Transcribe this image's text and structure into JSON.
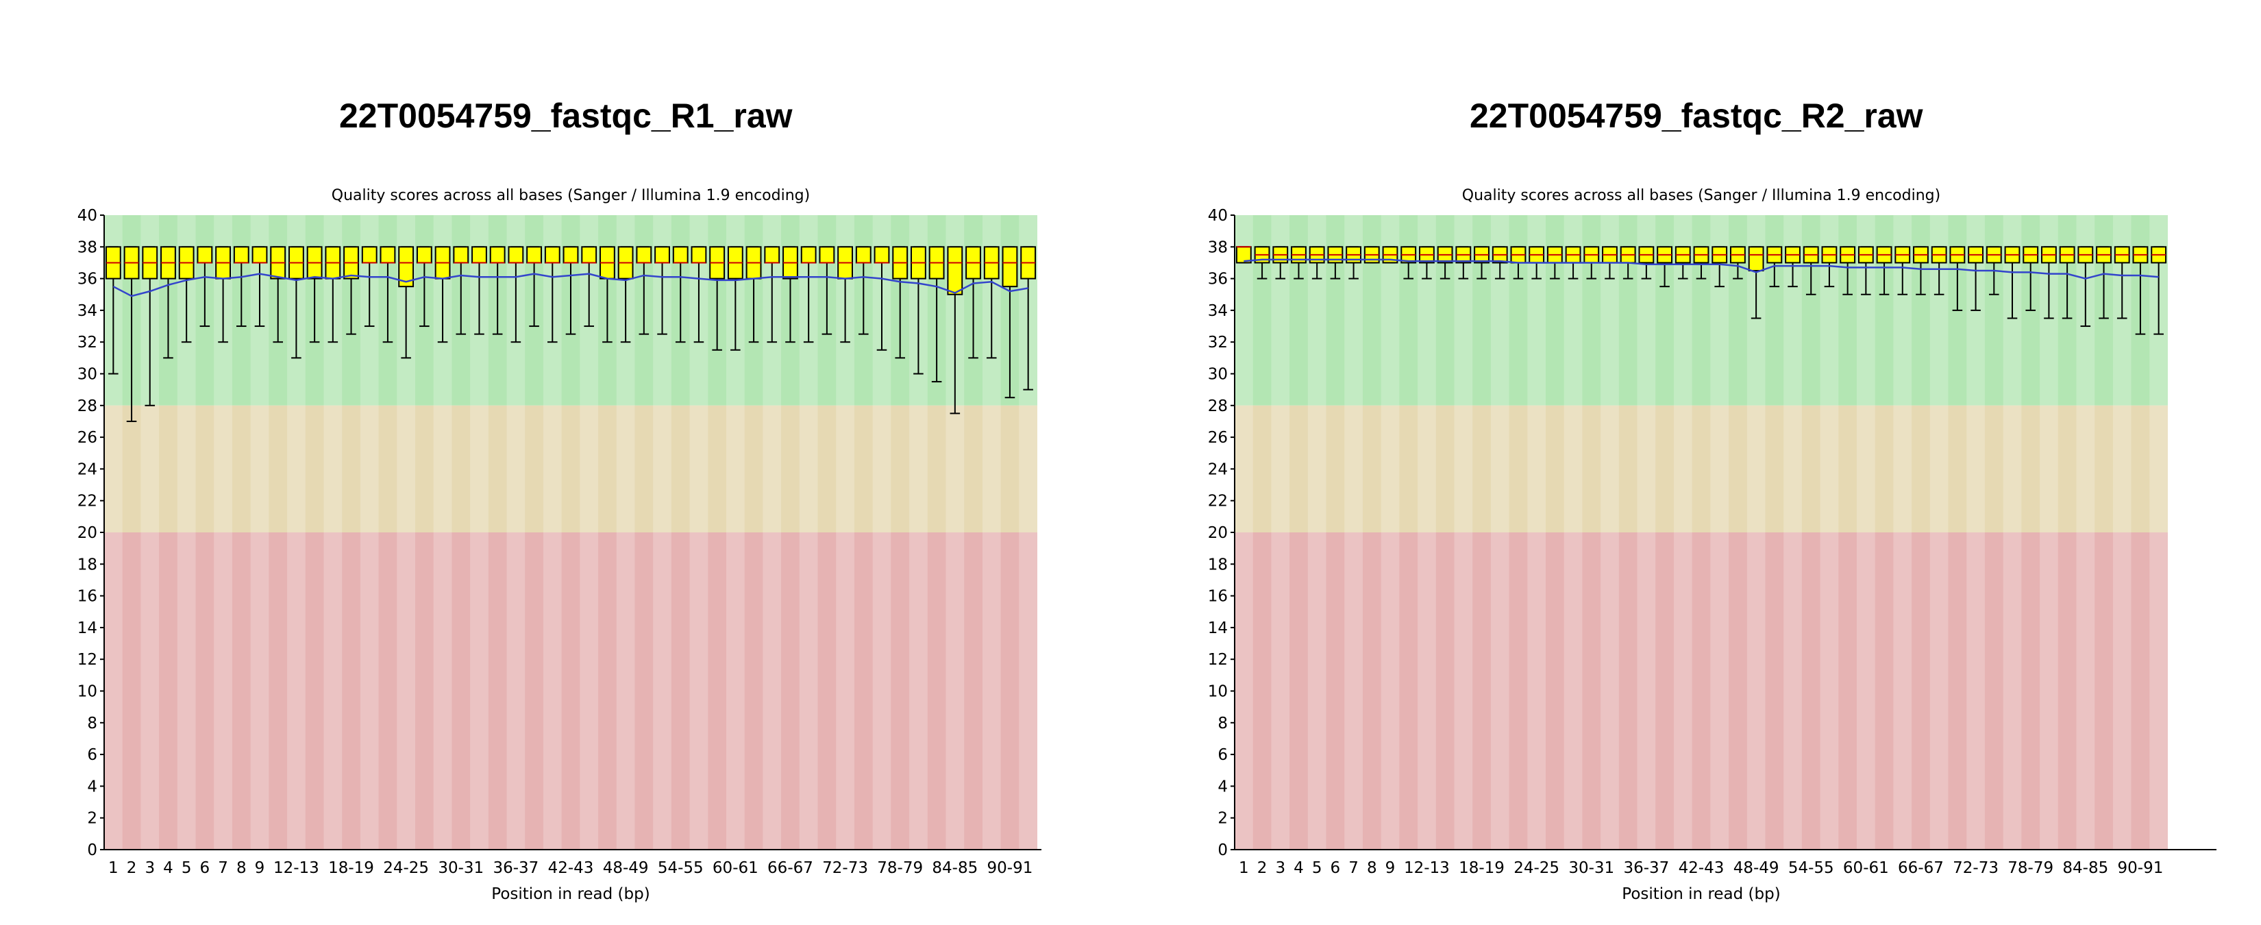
{
  "chart_data": [
    {
      "type": "box",
      "title": "22T0054759_fastqc_R1_raw",
      "subtitle": "Quality scores across all bases (Sanger / Illumina 1.9 encoding)",
      "xlabel": "Position in read (bp)",
      "ylabel": "",
      "ylim": [
        0,
        40
      ],
      "y_ticks": [
        0,
        2,
        4,
        6,
        8,
        10,
        12,
        14,
        16,
        18,
        20,
        22,
        24,
        26,
        28,
        30,
        32,
        34,
        36,
        38,
        40
      ],
      "zones": [
        {
          "from": 28,
          "to": 40,
          "color": "#b3e6b3"
        },
        {
          "from": 20,
          "to": 28,
          "color": "#e6d9b3"
        },
        {
          "from": 0,
          "to": 20,
          "color": "#e6b3b3"
        }
      ],
      "colors": {
        "box": "#ffff00",
        "mean_line": "#3344cc",
        "median": "#cc0000",
        "whisker": "#000000"
      },
      "categories": [
        "1",
        "2",
        "3",
        "4",
        "5",
        "6",
        "7",
        "8",
        "9",
        "10-11",
        "12-13",
        "14-15",
        "16-17",
        "18-19",
        "20-21",
        "22-23",
        "24-25",
        "26-27",
        "28-29",
        "30-31",
        "32-33",
        "34-35",
        "36-37",
        "38-39",
        "40-41",
        "42-43",
        "44-45",
        "46-47",
        "48-49",
        "50-51",
        "52-53",
        "54-55",
        "56-57",
        "58-59",
        "60-61",
        "62-63",
        "64-65",
        "66-67",
        "68-69",
        "70-71",
        "72-73",
        "74-75",
        "76-77",
        "78-79",
        "80-81",
        "82-83",
        "84-85",
        "86-87",
        "88-89",
        "90-91",
        "92-93"
      ],
      "x_tick_labels": [
        "1",
        "2",
        "3",
        "4",
        "5",
        "6",
        "7",
        "8",
        "9",
        "12-13",
        "18-19",
        "24-25",
        "30-31",
        "36-37",
        "42-43",
        "48-49",
        "54-55",
        "60-61",
        "66-67",
        "72-73",
        "78-79",
        "84-85",
        "90-91"
      ],
      "whisker_low": [
        30,
        27,
        28,
        31,
        32,
        33,
        32,
        33,
        33,
        32,
        31,
        32,
        32,
        32.5,
        33,
        32,
        31,
        33,
        32,
        32.5,
        32.5,
        32.5,
        32,
        33,
        32,
        32.5,
        33,
        32,
        32,
        32.5,
        32.5,
        32,
        32,
        31.5,
        31.5,
        32,
        32,
        32,
        32,
        32.5,
        32,
        32.5,
        31.5,
        31,
        30,
        29.5,
        27.5,
        31,
        31,
        28.5,
        29
      ],
      "q1": [
        36,
        36,
        36,
        36,
        36,
        37,
        36,
        37,
        37,
        36,
        36,
        36,
        36,
        36,
        37,
        37,
        35.5,
        37,
        36,
        37,
        37,
        37,
        37,
        37,
        37,
        37,
        37,
        36,
        36,
        37,
        37,
        37,
        37,
        36,
        36,
        36,
        37,
        36,
        37,
        37,
        36,
        37,
        37,
        36,
        36,
        36,
        35,
        36,
        36,
        35.5,
        36
      ],
      "median": [
        37,
        37,
        37,
        37,
        37,
        37,
        37,
        37,
        37,
        37,
        37,
        37,
        37,
        37,
        37,
        37,
        37,
        37,
        37,
        37,
        37,
        37,
        37,
        37,
        37,
        37,
        37,
        37,
        37,
        37,
        37,
        37,
        37,
        37,
        37,
        37,
        37,
        37,
        37,
        37,
        37,
        37,
        37,
        37,
        37,
        37,
        37,
        37,
        37,
        37,
        37
      ],
      "q3": [
        38,
        38,
        38,
        38,
        38,
        38,
        38,
        38,
        38,
        38,
        38,
        38,
        38,
        38,
        38,
        38,
        38,
        38,
        38,
        38,
        38,
        38,
        38,
        38,
        38,
        38,
        38,
        38,
        38,
        38,
        38,
        38,
        38,
        38,
        38,
        38,
        38,
        38,
        38,
        38,
        38,
        38,
        38,
        38,
        38,
        38,
        38,
        38,
        38,
        38,
        38
      ],
      "whisker_high": [
        38,
        38,
        38,
        38,
        38,
        38,
        38,
        38,
        38,
        38,
        38,
        38,
        38,
        38,
        38,
        38,
        38,
        38,
        38,
        38,
        38,
        38,
        38,
        38,
        38,
        38,
        38,
        38,
        38,
        38,
        38,
        38,
        38,
        38,
        38,
        38,
        38,
        38,
        38,
        38,
        38,
        38,
        38,
        38,
        38,
        38,
        38,
        38,
        38,
        38,
        38
      ],
      "mean": [
        35.5,
        34.9,
        35.2,
        35.6,
        35.9,
        36.1,
        36.0,
        36.1,
        36.3,
        36.1,
        35.9,
        36.1,
        36.0,
        36.2,
        36.1,
        36.1,
        35.8,
        36.1,
        36.0,
        36.2,
        36.1,
        36.1,
        36.1,
        36.3,
        36.1,
        36.2,
        36.3,
        36.0,
        35.9,
        36.2,
        36.1,
        36.1,
        36.0,
        35.9,
        35.9,
        36.0,
        36.1,
        36.1,
        36.1,
        36.1,
        36.0,
        36.1,
        36.0,
        35.8,
        35.7,
        35.5,
        35.1,
        35.7,
        35.8,
        35.2,
        35.4
      ]
    },
    {
      "type": "box",
      "title": "22T0054759_fastqc_R2_raw",
      "subtitle": "Quality scores across all bases (Sanger / Illumina 1.9 encoding)",
      "xlabel": "Position in read (bp)",
      "ylabel": "",
      "ylim": [
        0,
        40
      ],
      "y_ticks": [
        0,
        2,
        4,
        6,
        8,
        10,
        12,
        14,
        16,
        18,
        20,
        22,
        24,
        26,
        28,
        30,
        32,
        34,
        36,
        38,
        40
      ],
      "zones": [
        {
          "from": 28,
          "to": 40,
          "color": "#b3e6b3"
        },
        {
          "from": 20,
          "to": 28,
          "color": "#e6d9b3"
        },
        {
          "from": 0,
          "to": 20,
          "color": "#e6b3b3"
        }
      ],
      "colors": {
        "box": "#ffff00",
        "mean_line": "#3344cc",
        "median": "#cc0000",
        "whisker": "#000000"
      },
      "categories": [
        "1",
        "2",
        "3",
        "4",
        "5",
        "6",
        "7",
        "8",
        "9",
        "10-11",
        "12-13",
        "14-15",
        "16-17",
        "18-19",
        "20-21",
        "22-23",
        "24-25",
        "26-27",
        "28-29",
        "30-31",
        "32-33",
        "34-35",
        "36-37",
        "38-39",
        "40-41",
        "42-43",
        "44-45",
        "46-47",
        "48-49",
        "50-51",
        "52-53",
        "54-55",
        "56-57",
        "58-59",
        "60-61",
        "62-63",
        "64-65",
        "66-67",
        "68-69",
        "70-71",
        "72-73",
        "74-75",
        "76-77",
        "78-79",
        "80-81",
        "82-83",
        "84-85",
        "86-87",
        "88-89",
        "90-91",
        "92-93"
      ],
      "x_tick_labels": [
        "1",
        "2",
        "3",
        "4",
        "5",
        "6",
        "7",
        "8",
        "9",
        "12-13",
        "18-19",
        "24-25",
        "30-31",
        "36-37",
        "42-43",
        "48-49",
        "54-55",
        "60-61",
        "66-67",
        "72-73",
        "78-79",
        "84-85",
        "90-91"
      ],
      "whisker_low": [
        37,
        36,
        36,
        36,
        36,
        36,
        36,
        37,
        37,
        36,
        36,
        36,
        36,
        36,
        36,
        36,
        36,
        36,
        36,
        36,
        36,
        36,
        36,
        35.5,
        36,
        36,
        35.5,
        36,
        33.5,
        35.5,
        35.5,
        35,
        35.5,
        35,
        35,
        35,
        35,
        35,
        35,
        34,
        34,
        35,
        33.5,
        34,
        33.5,
        33.5,
        33,
        33.5,
        33.5,
        32.5,
        32.5
      ],
      "q1": [
        37,
        37,
        37,
        37,
        37,
        37,
        37,
        37,
        37,
        37,
        37,
        37,
        37,
        37,
        37,
        37,
        37,
        37,
        37,
        37,
        37,
        37,
        37,
        37,
        37,
        37,
        37,
        37,
        36.5,
        37,
        37,
        37,
        37,
        37,
        37,
        37,
        37,
        37,
        37,
        37,
        37,
        37,
        37,
        37,
        37,
        37,
        37,
        37,
        37,
        37,
        37
      ],
      "median": [
        38,
        37.5,
        37.5,
        37.5,
        37.5,
        37.5,
        37.5,
        37.5,
        37.5,
        37.5,
        37.5,
        37.5,
        37.5,
        37.5,
        37.5,
        37.5,
        37.5,
        37.5,
        37.5,
        37.5,
        37.5,
        37.5,
        37.5,
        37.5,
        37.5,
        37.5,
        37.5,
        37.5,
        37.5,
        37.5,
        37.5,
        37.5,
        37.5,
        37.5,
        37.5,
        37.5,
        37.5,
        37.5,
        37.5,
        37.5,
        37.5,
        37.5,
        37.5,
        37.5,
        37.5,
        37.5,
        37.5,
        37.5,
        37.5,
        37.5,
        37.5
      ],
      "q3": [
        38,
        38,
        38,
        38,
        38,
        38,
        38,
        38,
        38,
        38,
        38,
        38,
        38,
        38,
        38,
        38,
        38,
        38,
        38,
        38,
        38,
        38,
        38,
        38,
        38,
        38,
        38,
        38,
        38,
        38,
        38,
        38,
        38,
        38,
        38,
        38,
        38,
        38,
        38,
        38,
        38,
        38,
        38,
        38,
        38,
        38,
        38,
        38,
        38,
        38,
        38
      ],
      "whisker_high": [
        38,
        38,
        38,
        38,
        38,
        38,
        38,
        38,
        38,
        38,
        38,
        38,
        38,
        38,
        38,
        38,
        38,
        38,
        38,
        38,
        38,
        38,
        38,
        38,
        38,
        38,
        38,
        38,
        38,
        38,
        38,
        38,
        38,
        38,
        38,
        38,
        38,
        38,
        38,
        38,
        38,
        38,
        38,
        38,
        38,
        38,
        38,
        38,
        38,
        38,
        38
      ],
      "mean": [
        37.1,
        37.2,
        37.2,
        37.2,
        37.2,
        37.2,
        37.2,
        37.2,
        37.2,
        37.1,
        37.1,
        37.1,
        37.1,
        37.1,
        37.1,
        37.0,
        37.0,
        37.0,
        37.0,
        37.0,
        37.0,
        37.0,
        36.9,
        36.9,
        36.9,
        36.9,
        36.9,
        36.8,
        36.4,
        36.8,
        36.8,
        36.8,
        36.8,
        36.7,
        36.7,
        36.7,
        36.7,
        36.6,
        36.6,
        36.6,
        36.5,
        36.5,
        36.4,
        36.4,
        36.3,
        36.3,
        36.0,
        36.3,
        36.2,
        36.2,
        36.1
      ]
    }
  ]
}
